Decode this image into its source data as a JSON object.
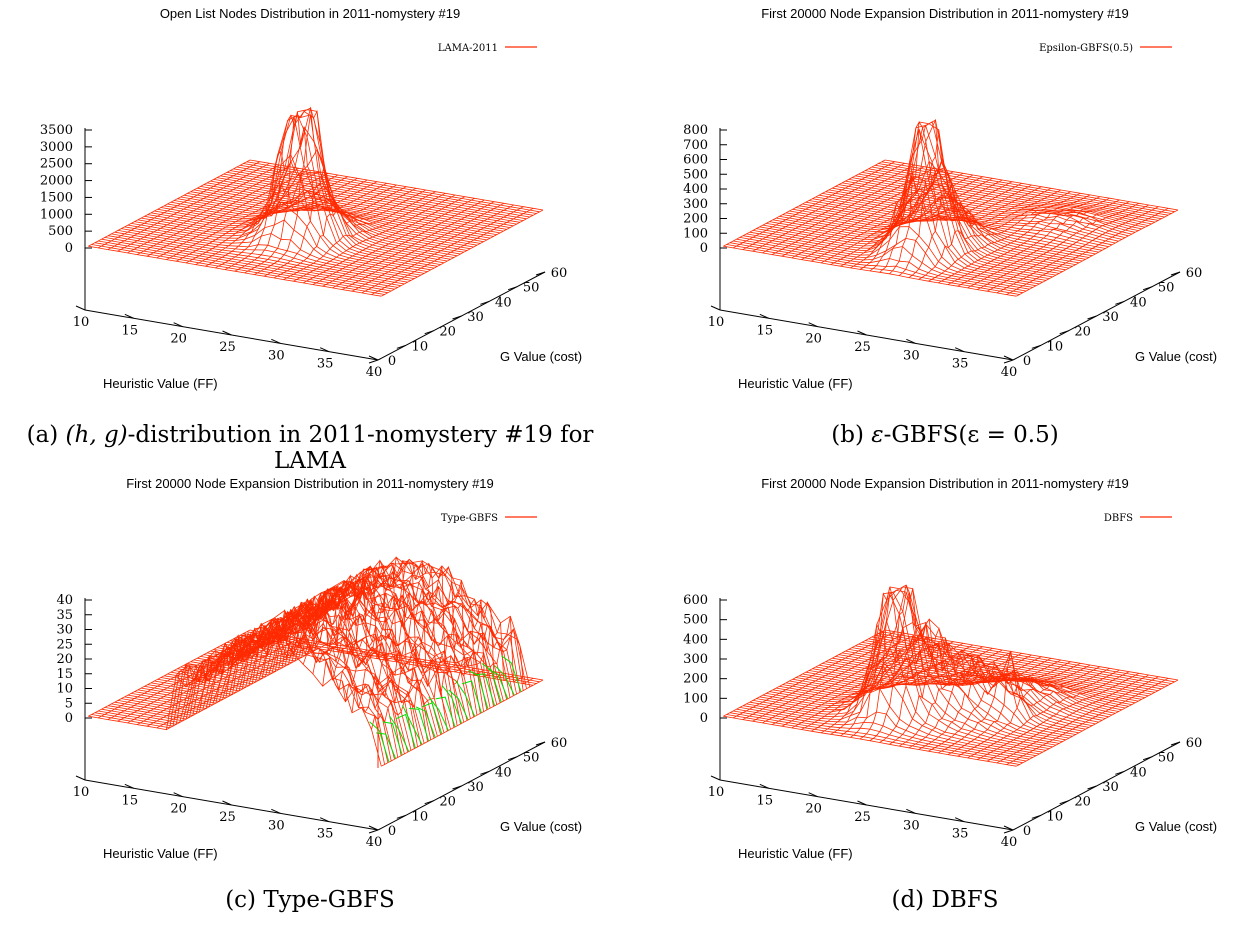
{
  "chart_data": [
    {
      "id": "a",
      "type": "surface",
      "title": "Open List Nodes Distribution in 2011-nomystery #19",
      "legend": "LAMA-2011",
      "legend_color": "#ff2a00",
      "xlabel": "Heuristic Value (FF)",
      "ylabel": "G Value (cost)",
      "x_ticks": [
        "10",
        "15",
        "20",
        "25",
        "30",
        "35",
        "40"
      ],
      "y_ticks": [
        "0",
        "10",
        "20",
        "30",
        "40",
        "50",
        "60"
      ],
      "z_ticks": [
        "0",
        "500",
        "1000",
        "1500",
        "2000",
        "2500",
        "3000",
        "3500"
      ],
      "xlim": [
        10,
        40
      ],
      "ylim": [
        0,
        60
      ],
      "zlim": [
        0,
        3500
      ],
      "peaks": [
        {
          "h": 26,
          "g": 38,
          "z": 3500,
          "sh": 1.6,
          "sg": 3.5
        },
        {
          "h": 25,
          "g": 34,
          "z": 1300,
          "sh": 2.5,
          "sg": 6
        }
      ],
      "caption_letter": "(a)",
      "caption_math": "(h, g)",
      "caption_text": "-distribution in 2011-nomystery #19 for LAMA"
    },
    {
      "id": "b",
      "type": "surface",
      "title": "First 20000 Node Expansion Distribution in 2011-nomystery #19",
      "legend": "Epsilon-GBFS(0.5)",
      "legend_color": "#ff2a00",
      "xlabel": "Heuristic Value (FF)",
      "ylabel": "G Value (cost)",
      "x_ticks": [
        "10",
        "15",
        "20",
        "25",
        "30",
        "35",
        "40"
      ],
      "y_ticks": [
        "0",
        "10",
        "20",
        "30",
        "40",
        "50",
        "60"
      ],
      "z_ticks": [
        "0",
        "100",
        "200",
        "300",
        "400",
        "500",
        "600",
        "700",
        "800"
      ],
      "xlim": [
        10,
        40
      ],
      "ylim": [
        0,
        60
      ],
      "zlim": [
        0,
        800
      ],
      "peaks": [
        {
          "h": 27,
          "g": 46,
          "z": 850,
          "sh": 1.6,
          "sg": 4
        },
        {
          "h": 26,
          "g": 38,
          "z": 350,
          "sh": 2.2,
          "sg": 5
        },
        {
          "h": 33,
          "g": 18,
          "z": 60,
          "sh": 3,
          "sg": 6
        }
      ],
      "caption_letter": "(b)",
      "caption_math": "ε",
      "caption_text": "-GBFS(ε = 0.5)"
    },
    {
      "id": "c",
      "type": "surface",
      "title": "First 20000 Node Expansion Distribution in 2011-nomystery #19",
      "legend": "Type-GBFS",
      "legend_color": "#ff2a00",
      "secondary_color": "#00e000",
      "xlabel": "Heuristic Value (FF)",
      "ylabel": "G Value (cost)",
      "x_ticks": [
        "10",
        "15",
        "20",
        "25",
        "30",
        "35",
        "40"
      ],
      "y_ticks": [
        "0",
        "10",
        "20",
        "30",
        "40",
        "50",
        "60"
      ],
      "z_ticks": [
        "0",
        "5",
        "10",
        "15",
        "20",
        "25",
        "30",
        "35",
        "40"
      ],
      "xlim": [
        10,
        40
      ],
      "ylim": [
        0,
        60
      ],
      "zlim": [
        0,
        40
      ],
      "caption_letter": "(c)",
      "caption_text": "Type-GBFS"
    },
    {
      "id": "d",
      "type": "surface",
      "title": "First 20000 Node Expansion Distribution in 2011-nomystery #19",
      "legend": "DBFS",
      "legend_color": "#ff2a00",
      "xlabel": "Heuristic Value (FF)",
      "ylabel": "G Value (cost)",
      "x_ticks": [
        "10",
        "15",
        "20",
        "25",
        "30",
        "35",
        "40"
      ],
      "y_ticks": [
        "0",
        "10",
        "20",
        "30",
        "40",
        "50",
        "60"
      ],
      "z_ticks": [
        "0",
        "100",
        "200",
        "300",
        "400",
        "500",
        "600"
      ],
      "xlim": [
        10,
        40
      ],
      "ylim": [
        0,
        60
      ],
      "zlim": [
        0,
        600
      ],
      "peaks": [
        {
          "h": 24,
          "g": 46,
          "z": 640,
          "sh": 1.4,
          "sg": 3
        },
        {
          "h": 24,
          "g": 40,
          "z": 380,
          "sh": 2.5,
          "sg": 6
        },
        {
          "h": 29,
          "g": 36,
          "z": 200,
          "sh": 2.5,
          "sg": 6
        },
        {
          "h": 33,
          "g": 36,
          "z": 230,
          "sh": 0.8,
          "sg": 1.5
        },
        {
          "h": 31,
          "g": 25,
          "z": 90,
          "sh": 3,
          "sg": 6
        }
      ],
      "caption_letter": "(d)",
      "caption_text": "DBFS"
    }
  ]
}
